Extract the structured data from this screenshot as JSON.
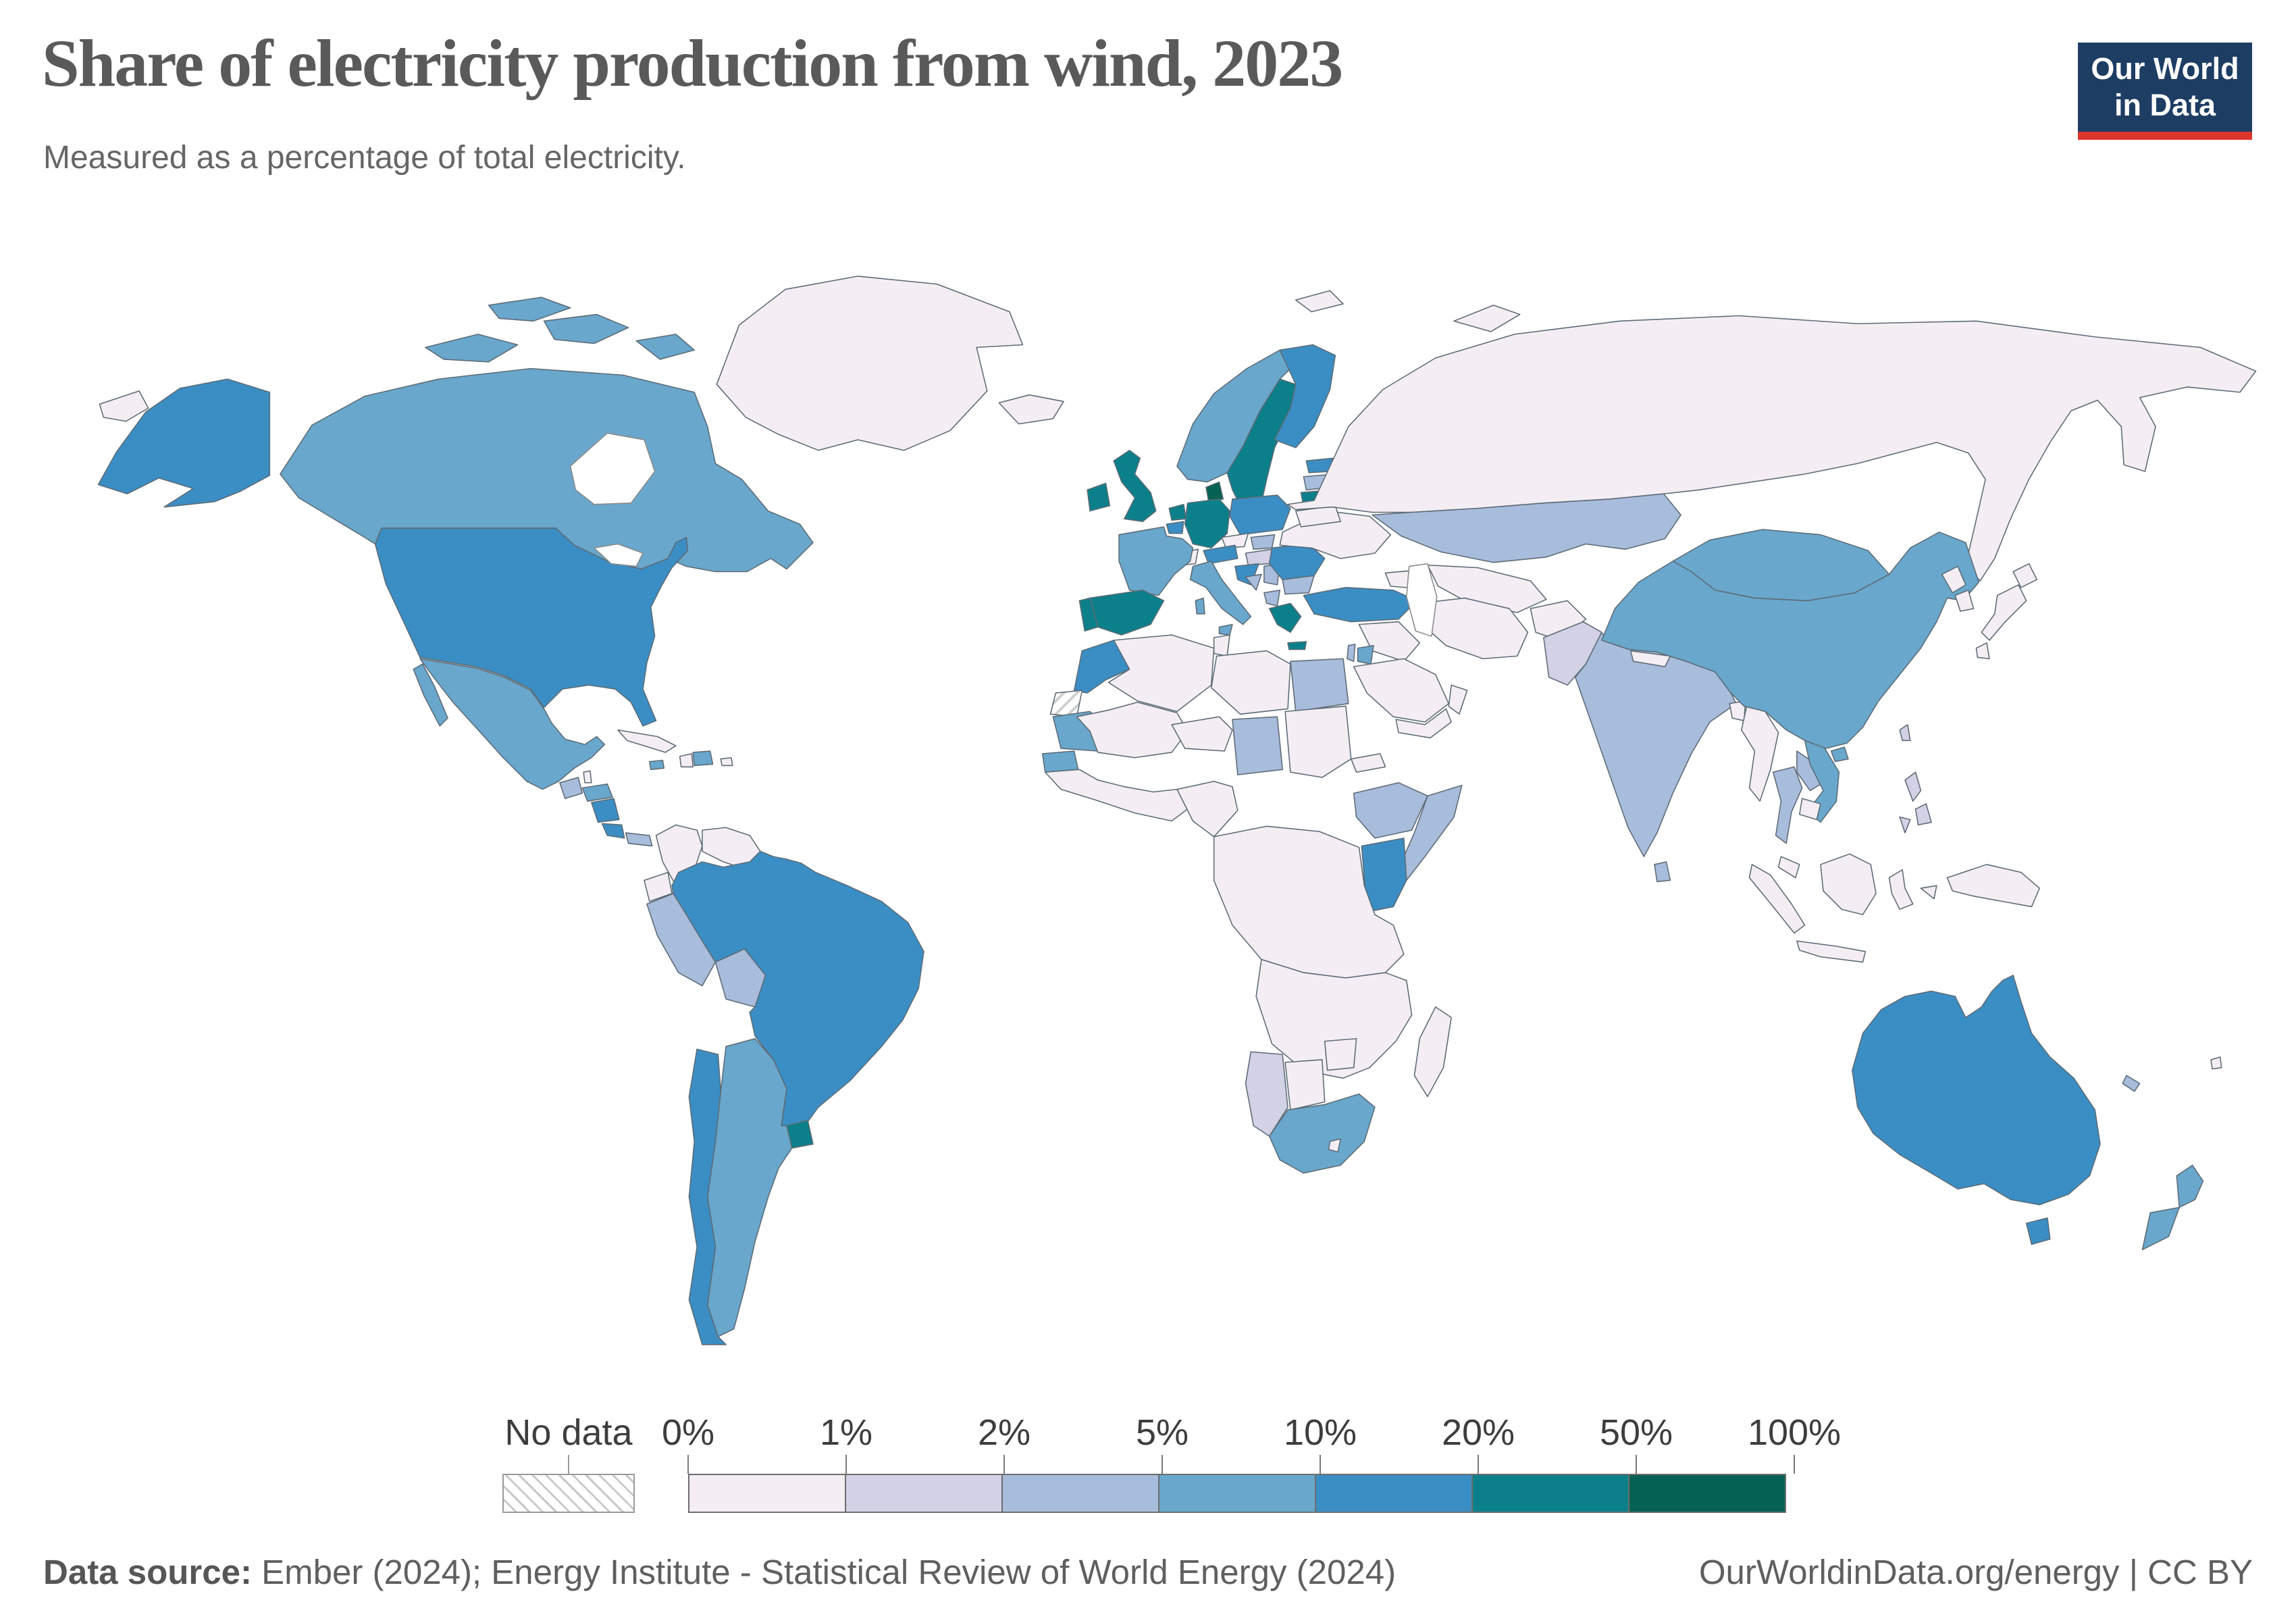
{
  "header": {
    "title": "Share of electricity production from wind, 2023",
    "subtitle": "Measured as a percentage of total electricity."
  },
  "logo": {
    "line1": "Our World",
    "line2": "in Data",
    "bg": "#1d3d63",
    "accent": "#dc352d"
  },
  "legend": {
    "no_data_label": "No data",
    "tick_labels": [
      "0%",
      "1%",
      "2%",
      "5%",
      "10%",
      "20%",
      "50%",
      "100%"
    ],
    "bin_colors": [
      "#f4eef4",
      "#d2d1e6",
      "#a8bcdc",
      "#69a7cc",
      "#3a8ec4",
      "#0b808a",
      "#056153"
    ],
    "bin_ranges": [
      "0-1%",
      "1-2%",
      "2-5%",
      "5-10%",
      "10-20%",
      "20-50%",
      "50-100%"
    ]
  },
  "footer": {
    "source_label": "Data source:",
    "source_text": " Ember (2024); Energy Institute - Statistical Review of World Energy (2024)",
    "credit": "OurWorldinData.org/energy | CC BY"
  },
  "chart_data": {
    "type": "choropleth_map",
    "title": "Share of electricity production from wind, 2023",
    "unit": "% of total electricity",
    "legend_position": "bottom",
    "bins": [
      "0-1%",
      "1-2%",
      "2-5%",
      "5-10%",
      "10-20%",
      "20-50%",
      "50-100%"
    ],
    "bin_note": "regions values: 1-7 = bin index, 0 = no data, -1 = inland water",
    "regions": {
      "greenland": 1,
      "iceland": 1,
      "svalbard": 1,
      "chukotka": 1,
      "arctic-islands": 4,
      "canada": 4,
      "alaska": 5,
      "usa": 5,
      "mexico": 4,
      "guatemala": 3,
      "belize": 1,
      "honduras": 4,
      "nicaragua": 5,
      "costa-rica": 5,
      "panama": 3,
      "cuba": 1,
      "jamaica": 4,
      "haiti": 1,
      "dominican-republic": 4,
      "puerto-rico": 1,
      "colombia": 1,
      "venezuela": 1,
      "guyana": 1,
      "suriname": 1,
      "french-guiana": 0,
      "ecuador": 1,
      "peru": 3,
      "bolivia": 3,
      "paraguay": 1,
      "brazil": 5,
      "uruguay": 6,
      "argentina": 4,
      "chile": 5,
      "norway": 4,
      "sweden": 6,
      "finland": 5,
      "denmark": 7,
      "estonia": 5,
      "latvia": 3,
      "lithuania": 6,
      "united-kingdom": 6,
      "ireland": 6,
      "netherlands": 6,
      "belgium": 5,
      "germany": 6,
      "poland": 5,
      "czechia": 1,
      "slovakia": 3,
      "austria": 5,
      "switzerland": 1,
      "france": 4,
      "spain": 6,
      "portugal": 6,
      "italy": 4,
      "hungary": 2,
      "croatia": 5,
      "bosnia": 3,
      "serbia": 3,
      "albania": 3,
      "bulgaria": 3,
      "romania": 5,
      "greece": 6,
      "moldova": 3,
      "ukraine": 1,
      "belarus": 1,
      "russia": 1,
      "novaya-zemlya": 1,
      "kazakhstan": 3,
      "central-asia": 1,
      "caucasus": 1,
      "turkey": 5,
      "syria-iraq": 1,
      "israel": 3,
      "jordan": 4,
      "saudi-arabia": 1,
      "yemen": 1,
      "oman": 1,
      "iran": 1,
      "afghanistan": 1,
      "pakistan": 2,
      "india": 3,
      "sri-lanka": 3,
      "nepal": 1,
      "bangladesh": 1,
      "myanmar": 1,
      "thailand": 3,
      "laos": 3,
      "vietnam": 4,
      "cambodia": 1,
      "malaysia": 1,
      "china": 4,
      "mongolia": 4,
      "north-korea": 1,
      "south-korea": 1,
      "japan": 1,
      "taiwan": 2,
      "philippines": 2,
      "indonesia": 1,
      "new-guinea": 1,
      "australia": 5,
      "tasmania": 5,
      "new-zealand": 4,
      "new-caledonia": 3,
      "fiji": 1,
      "morocco": 5,
      "western-sahara": 0,
      "algeria": 1,
      "tunisia": 1,
      "libya": 1,
      "egypt": 3,
      "mauritania": 4,
      "senegal": 4,
      "west-africa": 1,
      "guinea-coast": 1,
      "nigeria": 1,
      "niger": 1,
      "chad": 3,
      "sudan": 1,
      "eritrea": 1,
      "ethiopia": 3,
      "somalia": 3,
      "kenya": 5,
      "central-africa": 1,
      "southern-africa": 1,
      "namibia": 2,
      "botswana": 1,
      "zimbabwe": 1,
      "south-africa": 4,
      "lesotho": 1,
      "madagascar": 1,
      "hudson-bay": -1,
      "great-lakes": -1,
      "caspian-sea": -1
    }
  }
}
